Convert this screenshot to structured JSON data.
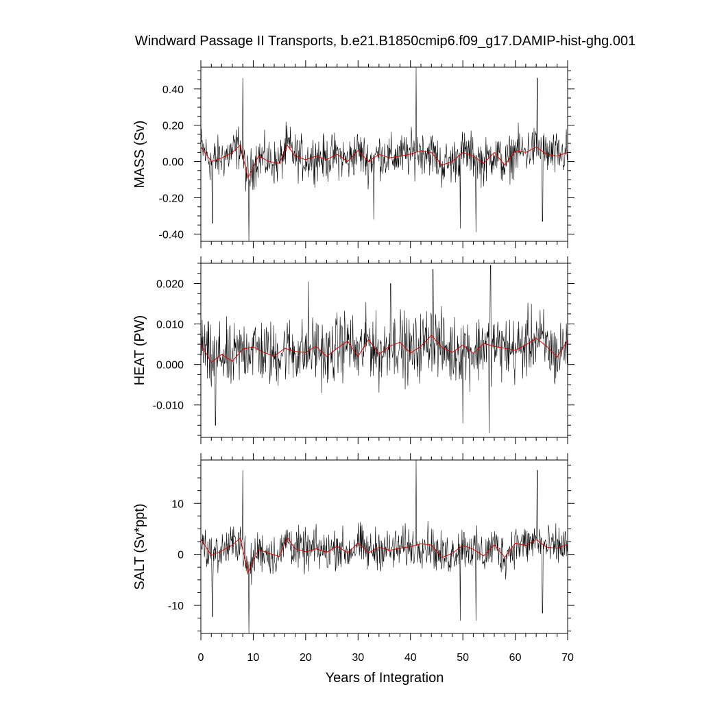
{
  "title": "Windward Passage II Transports, b.e21.B1850cmip6.f09_g17.DAMIP-hist-ghg.001",
  "xlabel": "Years of Integration",
  "x_ticks": [
    "0",
    "10",
    "20",
    "30",
    "40",
    "50",
    "60",
    "70"
  ],
  "colors": {
    "raw": "#000000",
    "smooth": "#dd0000",
    "frame": "#000000"
  },
  "chart_data": [
    {
      "type": "line",
      "ylabel": "MASS (Sv)",
      "xlim": [
        0,
        70
      ],
      "ylim": [
        -0.44,
        0.52
      ],
      "y_ticks": [
        -0.4,
        -0.2,
        0.0,
        0.2,
        0.4
      ],
      "y_tick_labels": [
        "-0.40",
        "-0.20",
        "0.00",
        "0.20",
        "0.40"
      ],
      "noise_amp": 0.09,
      "peaks": [
        [
          8,
          0.46
        ],
        [
          9.2,
          -0.44
        ],
        [
          41.1,
          0.52
        ],
        [
          64.2,
          0.46
        ],
        [
          65.2,
          -0.33
        ],
        [
          33,
          -0.32
        ],
        [
          49.5,
          -0.37
        ],
        [
          52.5,
          -0.39
        ],
        [
          2.2,
          -0.34
        ]
      ],
      "smooth_x": [
        0,
        2,
        4,
        6,
        7.5,
        9,
        11,
        13,
        15,
        16.5,
        18,
        20,
        22,
        24,
        26,
        28,
        30,
        32,
        34,
        36,
        38,
        40,
        42,
        44,
        46,
        48,
        50,
        52,
        54,
        56,
        58,
        60,
        62,
        64,
        66,
        68,
        70
      ],
      "smooth_y": [
        0.08,
        0.0,
        0.02,
        0.05,
        0.09,
        -0.09,
        0.03,
        0.0,
        -0.01,
        0.09,
        0.03,
        0.01,
        0.03,
        0.01,
        0.04,
        0.0,
        0.06,
        0.0,
        0.04,
        0.02,
        0.03,
        0.04,
        0.06,
        0.05,
        -0.02,
        0.0,
        0.05,
        0.03,
        -0.01,
        0.05,
        -0.02,
        0.06,
        0.05,
        0.08,
        0.04,
        0.03,
        0.05
      ]
    },
    {
      "type": "line",
      "ylabel": "HEAT (PW)",
      "xlim": [
        0,
        70
      ],
      "ylim": [
        -0.018,
        0.025
      ],
      "y_ticks": [
        -0.01,
        0.0,
        0.01,
        0.02
      ],
      "y_tick_labels": [
        "-0.010",
        "0.000",
        "0.010",
        "0.020"
      ],
      "noise_amp": 0.006,
      "peaks": [
        [
          20.5,
          0.0205
        ],
        [
          44.3,
          0.0235
        ],
        [
          55.3,
          0.0245
        ],
        [
          55,
          -0.017
        ],
        [
          50,
          -0.0145
        ],
        [
          2.8,
          -0.015
        ],
        [
          36.2,
          0.02
        ]
      ],
      "smooth_x": [
        0,
        2,
        4,
        6,
        8,
        10,
        12,
        14,
        16,
        18,
        20,
        22,
        24,
        26,
        28,
        30,
        32,
        34,
        36,
        38,
        40,
        42,
        44,
        46,
        48,
        50,
        52,
        54,
        56,
        58,
        60,
        62,
        64,
        66,
        68,
        70
      ],
      "smooth_y": [
        0.005,
        0.0005,
        0.0025,
        0.0008,
        0.0038,
        0.0043,
        0.003,
        0.002,
        0.004,
        0.0032,
        0.003,
        0.0045,
        0.002,
        0.004,
        0.0058,
        0.002,
        0.0062,
        0.0025,
        0.0045,
        0.0055,
        0.0028,
        0.0045,
        0.0072,
        0.0042,
        0.003,
        0.0048,
        0.0028,
        0.0052,
        0.0045,
        0.004,
        0.0035,
        0.0048,
        0.0065,
        0.0045,
        0.0018,
        0.006
      ]
    },
    {
      "type": "line",
      "ylabel": "SALT (Sv*ppt)",
      "xlim": [
        0,
        70
      ],
      "ylim": [
        -15.5,
        18.5
      ],
      "y_ticks": [
        -10,
        0,
        10
      ],
      "y_tick_labels": [
        "-10",
        "0",
        "10"
      ],
      "noise_amp": 3.0,
      "peaks": [
        [
          8,
          16.5
        ],
        [
          9.2,
          -15.5
        ],
        [
          41.1,
          18.5
        ],
        [
          64.2,
          16.5
        ],
        [
          2.2,
          -12.2
        ],
        [
          52.5,
          -13
        ],
        [
          65.2,
          -11.5
        ],
        [
          49.5,
          -13
        ]
      ],
      "smooth_x": [
        0,
        2,
        4,
        6,
        7.5,
        9,
        11,
        13,
        15,
        16.5,
        18,
        20,
        22,
        24,
        26,
        28,
        30,
        32,
        34,
        36,
        38,
        40,
        42,
        44,
        46,
        48,
        50,
        52,
        54,
        56,
        58,
        60,
        62,
        64,
        66,
        68,
        70
      ],
      "smooth_y": [
        3.0,
        -0.2,
        0.7,
        1.8,
        3.2,
        -3.5,
        1.0,
        0.2,
        -0.4,
        3.3,
        1.1,
        0.5,
        1.1,
        0.4,
        1.6,
        0.3,
        2.2,
        0.3,
        1.4,
        0.8,
        1.2,
        1.5,
        2.1,
        1.8,
        -0.6,
        0.2,
        1.8,
        1.0,
        -0.3,
        1.9,
        -0.6,
        2.2,
        1.7,
        2.9,
        1.4,
        1.2,
        2.0
      ]
    }
  ]
}
